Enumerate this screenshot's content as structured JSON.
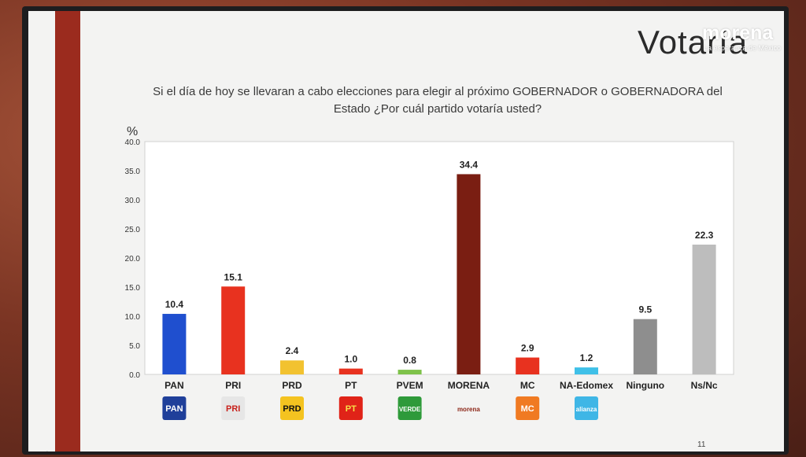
{
  "slide": {
    "title": "Votaría",
    "brand": "morena",
    "brand_sub": "La esperanza de México",
    "question": "Si el día de hoy se llevaran a cabo elecciones para elegir al próximo GOBERNADOR o GOBERNADORA del Estado ¿Por cuál partido votaría usted?",
    "page_number": "11"
  },
  "chart_data": {
    "type": "bar",
    "ylabel": "%",
    "ylim": [
      0,
      40
    ],
    "yticks": [
      "0.0",
      "5.0",
      "10.0",
      "15.0",
      "20.0",
      "25.0",
      "30.0",
      "35.0",
      "40.0"
    ],
    "grid": false,
    "categories": [
      "PAN",
      "PRI",
      "PRD",
      "PT",
      "PVEM",
      "MORENA",
      "MC",
      "NA-Edomex",
      "Ninguno",
      "Ns/Nc"
    ],
    "values": [
      10.4,
      15.1,
      2.4,
      1.0,
      0.8,
      34.4,
      2.9,
      1.2,
      9.5,
      22.3
    ],
    "value_labels": [
      "10.4",
      "15.1",
      "2.4",
      "1.0",
      "0.8",
      "34.4",
      "2.9",
      "1.2",
      "9.5",
      "22.3"
    ],
    "colors": [
      "#1f4fcf",
      "#e8321f",
      "#f2c230",
      "#e8321f",
      "#7ec24a",
      "#7a1e12",
      "#e8321f",
      "#3fc0e8",
      "#8e8e8e",
      "#bdbdbd"
    ],
    "logos": [
      {
        "name": "pan-logo",
        "text": "PAN",
        "bg": "#1f3f9a",
        "fg": "#ffffff"
      },
      {
        "name": "pri-logo",
        "text": "PRI",
        "bg": "#e6e6e6",
        "fg": "#c8201a"
      },
      {
        "name": "prd-logo",
        "text": "PRD",
        "bg": "#f4c320",
        "fg": "#111111"
      },
      {
        "name": "pt-logo",
        "text": "PT",
        "bg": "#e02318",
        "fg": "#f7e14a"
      },
      {
        "name": "pvem-logo",
        "text": "VERDE",
        "bg": "#2e9a3a",
        "fg": "#ffffff"
      },
      {
        "name": "morena-logo",
        "text": "morena",
        "bg": "transparent",
        "fg": "#8c2617"
      },
      {
        "name": "mc-logo",
        "text": "MC",
        "bg": "#f07a22",
        "fg": "#ffffff"
      },
      {
        "name": "na-logo",
        "text": "alianza",
        "bg": "#3fb6e6",
        "fg": "#ffffff"
      }
    ]
  }
}
